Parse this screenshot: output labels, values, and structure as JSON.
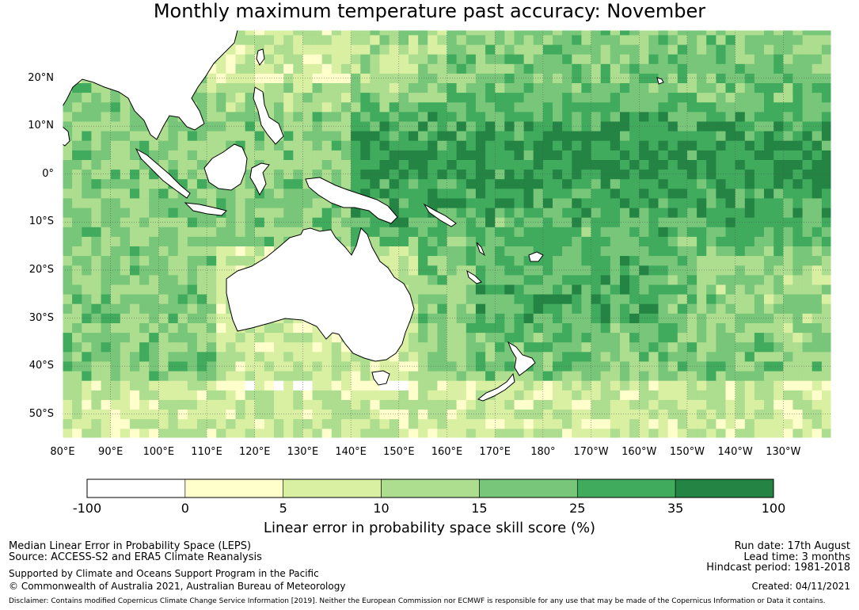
{
  "title": "Monthly maximum temperature past accuracy: November",
  "map": {
    "lat_ticks": [
      "20°N",
      "10°N",
      "0°",
      "10°S",
      "20°S",
      "30°S",
      "40°S",
      "50°S"
    ],
    "lon_ticks": [
      "80°E",
      "90°E",
      "100°E",
      "110°E",
      "120°E",
      "130°E",
      "140°E",
      "150°E",
      "160°E",
      "170°E",
      "180°",
      "170°W",
      "160°W",
      "150°W",
      "140°W",
      "130°W"
    ],
    "lat_range": [
      -55,
      30
    ],
    "lon_range": [
      80,
      240
    ],
    "land_color": "#ffffff",
    "coast_color": "#000000"
  },
  "colorbar": {
    "ticks": [
      "-100",
      "0",
      "5",
      "10",
      "15",
      "25",
      "35",
      "100"
    ],
    "colors": [
      "#ffffff",
      "#ffffcc",
      "#d9f0a3",
      "#addd8e",
      "#78c679",
      "#41ab5d",
      "#238443"
    ],
    "label": "Linear error in probability space skill score (%)"
  },
  "footer": {
    "left_line1": "Median Linear Error in Probability Space (LEPS)",
    "left_line2": "Source: ACCESS-S2 and ERA5 Climate Reanalysis",
    "left_line3": "Supported by Climate and Oceans Support Program in the Pacific",
    "left_line4": "© Commonwealth of Australia 2021, Australian Bureau of Meteorology",
    "right_line1": "Run date: 17th August",
    "right_line2": "Lead time: 3 months",
    "right_line3": "Hindcast period: 1981-2018",
    "right_line4": "Created: 04/11/2021",
    "disclaimer": "Disclaimer: Contains modified Copernicus Climate Change Service Information [2019]. Neither the European Commission nor ECMWF is responsible for any use that may be made of the Copernicus Information or Data it contains."
  }
}
